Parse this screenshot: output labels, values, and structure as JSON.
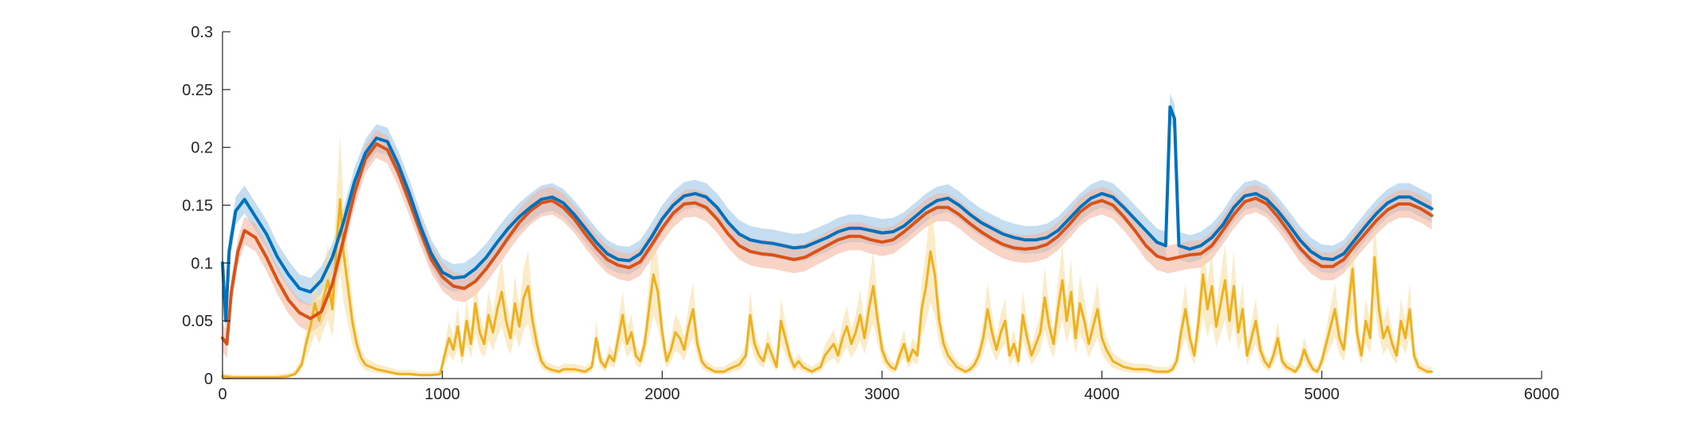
{
  "chart_data": {
    "type": "line",
    "title": "",
    "xlabel": "",
    "ylabel": "",
    "xlim": [
      0,
      6000
    ],
    "ylim": [
      0,
      0.3
    ],
    "xticks": [
      "0",
      "1000",
      "2000",
      "3000",
      "4000",
      "5000",
      "6000"
    ],
    "yticks": [
      "0",
      "0.05",
      "0.1",
      "0.15",
      "0.2",
      "0.25",
      "0.3"
    ],
    "grid": false,
    "legend": "none",
    "series": [
      {
        "color": "#0072BD",
        "band_color": "#9cc6e8",
        "x": [
          0,
          15,
          30,
          60,
          100,
          150,
          200,
          250,
          300,
          350,
          400,
          450,
          500,
          550,
          600,
          650,
          700,
          750,
          800,
          850,
          900,
          950,
          1000,
          1050,
          1100,
          1150,
          1200,
          1250,
          1300,
          1350,
          1400,
          1450,
          1500,
          1550,
          1600,
          1650,
          1700,
          1750,
          1800,
          1850,
          1900,
          1950,
          2000,
          2050,
          2100,
          2150,
          2200,
          2250,
          2300,
          2350,
          2400,
          2450,
          2500,
          2550,
          2600,
          2650,
          2700,
          2750,
          2800,
          2850,
          2900,
          2950,
          3000,
          3050,
          3100,
          3150,
          3200,
          3250,
          3300,
          3350,
          3400,
          3450,
          3500,
          3550,
          3600,
          3650,
          3700,
          3750,
          3800,
          3850,
          3900,
          3950,
          4000,
          4050,
          4100,
          4150,
          4200,
          4250,
          4290,
          4310,
          4330,
          4350,
          4400,
          4450,
          4500,
          4550,
          4600,
          4650,
          4700,
          4750,
          4800,
          4850,
          4900,
          4950,
          5000,
          5050,
          5100,
          5150,
          5200,
          5250,
          5300,
          5350,
          5400,
          5450,
          5500
        ],
        "y": [
          0.1,
          0.05,
          0.11,
          0.145,
          0.155,
          0.14,
          0.125,
          0.105,
          0.09,
          0.078,
          0.075,
          0.085,
          0.105,
          0.135,
          0.17,
          0.195,
          0.208,
          0.205,
          0.185,
          0.16,
          0.132,
          0.108,
          0.092,
          0.087,
          0.088,
          0.095,
          0.105,
          0.118,
          0.13,
          0.14,
          0.148,
          0.155,
          0.157,
          0.152,
          0.142,
          0.13,
          0.118,
          0.108,
          0.103,
          0.102,
          0.108,
          0.122,
          0.138,
          0.15,
          0.158,
          0.16,
          0.157,
          0.148,
          0.135,
          0.125,
          0.12,
          0.118,
          0.117,
          0.115,
          0.113,
          0.114,
          0.118,
          0.122,
          0.127,
          0.13,
          0.13,
          0.128,
          0.126,
          0.127,
          0.132,
          0.14,
          0.148,
          0.154,
          0.156,
          0.15,
          0.142,
          0.135,
          0.13,
          0.125,
          0.122,
          0.12,
          0.12,
          0.122,
          0.128,
          0.138,
          0.148,
          0.156,
          0.16,
          0.157,
          0.148,
          0.138,
          0.128,
          0.118,
          0.115,
          0.235,
          0.225,
          0.115,
          0.112,
          0.115,
          0.122,
          0.133,
          0.148,
          0.158,
          0.16,
          0.155,
          0.145,
          0.133,
          0.12,
          0.11,
          0.104,
          0.103,
          0.108,
          0.12,
          0.132,
          0.143,
          0.152,
          0.157,
          0.157,
          0.152,
          0.147
        ]
      },
      {
        "color": "#D95319",
        "band_color": "#f3b8a0",
        "x": [
          0,
          20,
          40,
          70,
          100,
          150,
          200,
          250,
          300,
          350,
          400,
          450,
          500,
          550,
          600,
          650,
          700,
          750,
          800,
          850,
          900,
          950,
          1000,
          1050,
          1100,
          1150,
          1200,
          1250,
          1300,
          1350,
          1400,
          1450,
          1500,
          1550,
          1600,
          1650,
          1700,
          1750,
          1800,
          1850,
          1900,
          1950,
          2000,
          2050,
          2100,
          2150,
          2200,
          2250,
          2300,
          2350,
          2400,
          2450,
          2500,
          2550,
          2600,
          2650,
          2700,
          2750,
          2800,
          2850,
          2900,
          2950,
          3000,
          3050,
          3100,
          3150,
          3200,
          3250,
          3300,
          3350,
          3400,
          3450,
          3500,
          3550,
          3600,
          3650,
          3700,
          3750,
          3800,
          3850,
          3900,
          3950,
          4000,
          4050,
          4100,
          4150,
          4200,
          4250,
          4300,
          4350,
          4400,
          4450,
          4500,
          4550,
          4600,
          4650,
          4700,
          4750,
          4800,
          4850,
          4900,
          4950,
          5000,
          5050,
          5100,
          5150,
          5200,
          5250,
          5300,
          5350,
          5400,
          5450,
          5500
        ],
        "y": [
          0.035,
          0.03,
          0.075,
          0.11,
          0.128,
          0.122,
          0.105,
          0.085,
          0.068,
          0.057,
          0.052,
          0.058,
          0.082,
          0.12,
          0.16,
          0.19,
          0.203,
          0.198,
          0.178,
          0.153,
          0.127,
          0.103,
          0.088,
          0.08,
          0.078,
          0.084,
          0.095,
          0.108,
          0.122,
          0.135,
          0.145,
          0.152,
          0.154,
          0.148,
          0.138,
          0.125,
          0.113,
          0.103,
          0.098,
          0.096,
          0.101,
          0.115,
          0.13,
          0.143,
          0.151,
          0.152,
          0.148,
          0.138,
          0.125,
          0.115,
          0.11,
          0.108,
          0.107,
          0.105,
          0.103,
          0.105,
          0.11,
          0.115,
          0.12,
          0.123,
          0.123,
          0.12,
          0.118,
          0.12,
          0.127,
          0.135,
          0.143,
          0.148,
          0.148,
          0.142,
          0.134,
          0.127,
          0.121,
          0.116,
          0.113,
          0.112,
          0.113,
          0.116,
          0.123,
          0.133,
          0.144,
          0.151,
          0.154,
          0.15,
          0.14,
          0.128,
          0.115,
          0.106,
          0.103,
          0.105,
          0.107,
          0.108,
          0.115,
          0.128,
          0.142,
          0.153,
          0.156,
          0.151,
          0.14,
          0.127,
          0.113,
          0.103,
          0.097,
          0.097,
          0.103,
          0.115,
          0.126,
          0.137,
          0.146,
          0.151,
          0.151,
          0.147,
          0.141
        ]
      },
      {
        "color": "#EDB120",
        "band_color": "#f7dc9c",
        "x": [
          0,
          50,
          100,
          150,
          200,
          250,
          300,
          330,
          360,
          380,
          400,
          420,
          440,
          460,
          480,
          500,
          520,
          535,
          550,
          570,
          590,
          610,
          630,
          650,
          700,
          750,
          800,
          850,
          900,
          950,
          990,
          1010,
          1030,
          1050,
          1070,
          1090,
          1110,
          1130,
          1150,
          1170,
          1190,
          1210,
          1230,
          1250,
          1270,
          1290,
          1310,
          1330,
          1350,
          1370,
          1390,
          1410,
          1430,
          1450,
          1470,
          1490,
          1510,
          1530,
          1550,
          1600,
          1650,
          1680,
          1700,
          1720,
          1740,
          1760,
          1780,
          1800,
          1820,
          1840,
          1860,
          1880,
          1900,
          1920,
          1940,
          1960,
          1980,
          2000,
          2020,
          2040,
          2060,
          2080,
          2100,
          2120,
          2140,
          2160,
          2180,
          2200,
          2220,
          2240,
          2260,
          2280,
          2300,
          2350,
          2380,
          2400,
          2420,
          2440,
          2460,
          2480,
          2500,
          2520,
          2540,
          2560,
          2580,
          2600,
          2620,
          2640,
          2660,
          2680,
          2700,
          2720,
          2740,
          2760,
          2780,
          2800,
          2820,
          2840,
          2860,
          2880,
          2900,
          2920,
          2940,
          2960,
          2980,
          3000,
          3020,
          3040,
          3060,
          3080,
          3100,
          3120,
          3140,
          3160,
          3180,
          3200,
          3220,
          3240,
          3260,
          3280,
          3300,
          3320,
          3340,
          3360,
          3380,
          3400,
          3420,
          3440,
          3460,
          3480,
          3500,
          3520,
          3540,
          3560,
          3580,
          3600,
          3620,
          3640,
          3660,
          3680,
          3700,
          3720,
          3740,
          3760,
          3780,
          3800,
          3820,
          3840,
          3860,
          3880,
          3900,
          3920,
          3940,
          3960,
          3980,
          4000,
          4020,
          4050,
          4100,
          4150,
          4200,
          4250,
          4280,
          4300,
          4320,
          4340,
          4360,
          4380,
          4400,
          4420,
          4440,
          4460,
          4480,
          4500,
          4520,
          4540,
          4560,
          4580,
          4600,
          4620,
          4640,
          4660,
          4680,
          4700,
          4720,
          4740,
          4760,
          4780,
          4800,
          4820,
          4840,
          4860,
          4880,
          4900,
          4920,
          4940,
          4960,
          4980,
          5000,
          5020,
          5040,
          5060,
          5080,
          5100,
          5120,
          5140,
          5160,
          5180,
          5200,
          5220,
          5240,
          5260,
          5280,
          5300,
          5320,
          5340,
          5360,
          5380,
          5400,
          5420,
          5440,
          5460,
          5480,
          5500
        ],
        "y": [
          0.002,
          0.001,
          0.001,
          0.001,
          0.001,
          0.001,
          0.002,
          0.004,
          0.012,
          0.03,
          0.045,
          0.065,
          0.05,
          0.07,
          0.085,
          0.06,
          0.12,
          0.155,
          0.11,
          0.08,
          0.05,
          0.03,
          0.018,
          0.012,
          0.008,
          0.006,
          0.004,
          0.004,
          0.003,
          0.003,
          0.004,
          0.02,
          0.035,
          0.025,
          0.045,
          0.02,
          0.05,
          0.03,
          0.065,
          0.04,
          0.03,
          0.055,
          0.04,
          0.06,
          0.075,
          0.05,
          0.035,
          0.065,
          0.045,
          0.07,
          0.08,
          0.05,
          0.03,
          0.015,
          0.01,
          0.008,
          0.007,
          0.006,
          0.008,
          0.008,
          0.006,
          0.01,
          0.035,
          0.015,
          0.01,
          0.02,
          0.015,
          0.035,
          0.055,
          0.03,
          0.04,
          0.02,
          0.015,
          0.03,
          0.06,
          0.09,
          0.075,
          0.04,
          0.015,
          0.025,
          0.04,
          0.035,
          0.025,
          0.045,
          0.06,
          0.03,
          0.015,
          0.01,
          0.008,
          0.006,
          0.006,
          0.006,
          0.008,
          0.012,
          0.02,
          0.055,
          0.03,
          0.02,
          0.015,
          0.03,
          0.02,
          0.01,
          0.05,
          0.035,
          0.02,
          0.01,
          0.015,
          0.01,
          0.008,
          0.006,
          0.008,
          0.01,
          0.02,
          0.025,
          0.03,
          0.02,
          0.035,
          0.045,
          0.03,
          0.04,
          0.055,
          0.035,
          0.06,
          0.08,
          0.05,
          0.025,
          0.015,
          0.01,
          0.008,
          0.02,
          0.03,
          0.015,
          0.025,
          0.02,
          0.06,
          0.08,
          0.11,
          0.09,
          0.05,
          0.03,
          0.02,
          0.015,
          0.01,
          0.008,
          0.006,
          0.008,
          0.012,
          0.02,
          0.035,
          0.06,
          0.04,
          0.025,
          0.04,
          0.05,
          0.02,
          0.03,
          0.015,
          0.055,
          0.035,
          0.02,
          0.03,
          0.04,
          0.07,
          0.045,
          0.03,
          0.06,
          0.085,
          0.05,
          0.075,
          0.035,
          0.065,
          0.05,
          0.03,
          0.045,
          0.06,
          0.035,
          0.025,
          0.015,
          0.01,
          0.008,
          0.008,
          0.006,
          0.006,
          0.006,
          0.008,
          0.015,
          0.04,
          0.06,
          0.035,
          0.02,
          0.05,
          0.09,
          0.06,
          0.08,
          0.045,
          0.065,
          0.085,
          0.05,
          0.08,
          0.04,
          0.06,
          0.02,
          0.035,
          0.05,
          0.025,
          0.015,
          0.01,
          0.02,
          0.035,
          0.015,
          0.01,
          0.008,
          0.006,
          0.012,
          0.025,
          0.015,
          0.008,
          0.006,
          0.015,
          0.03,
          0.045,
          0.06,
          0.035,
          0.025,
          0.06,
          0.095,
          0.04,
          0.02,
          0.05,
          0.035,
          0.105,
          0.06,
          0.035,
          0.045,
          0.03,
          0.02,
          0.05,
          0.035,
          0.06,
          0.02,
          0.01,
          0.008,
          0.006,
          0.006
        ]
      }
    ]
  }
}
